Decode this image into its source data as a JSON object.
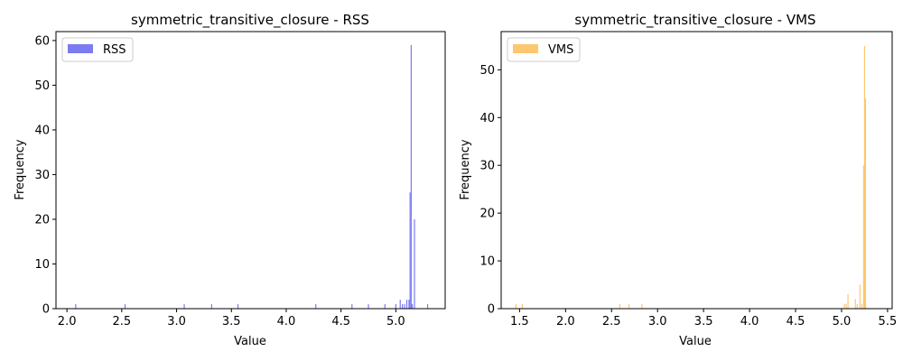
{
  "chart_data": [
    {
      "type": "bar",
      "title": "symmetric_transitive_closure - RSS",
      "xlabel": "Value",
      "ylabel": "Frequency",
      "xlim": [
        1.9,
        5.45
      ],
      "ylim": [
        0,
        62
      ],
      "xticks": [
        "2.0",
        "2.5",
        "3.0",
        "3.5",
        "4.0",
        "4.5",
        "5.0"
      ],
      "yticks": [
        "0",
        "10",
        "20",
        "30",
        "40",
        "50",
        "60"
      ],
      "grid": false,
      "legend_position": "top-left",
      "color": "#7b7bf4",
      "series": [
        {
          "name": "RSS",
          "x": [
            2.08,
            2.53,
            3.07,
            3.32,
            3.56,
            4.27,
            4.6,
            4.75,
            4.9,
            5.0,
            5.04,
            5.06,
            5.08,
            5.1,
            5.12,
            5.13,
            5.14,
            5.15,
            5.17,
            5.29
          ],
          "values": [
            1,
            1,
            1,
            1,
            1,
            1,
            1,
            1,
            1,
            1,
            2,
            1,
            1,
            2,
            2,
            26,
            59,
            1,
            20,
            1
          ]
        }
      ]
    },
    {
      "type": "bar",
      "title": "symmetric_transitive_closure - VMS",
      "xlabel": "Value",
      "ylabel": "Frequency",
      "xlim": [
        1.3,
        5.55
      ],
      "ylim": [
        0,
        58
      ],
      "xticks": [
        "1.5",
        "2.0",
        "2.5",
        "3.0",
        "3.5",
        "4.0",
        "4.5",
        "5.0",
        "5.5"
      ],
      "yticks": [
        "0",
        "10",
        "20",
        "30",
        "40",
        "50"
      ],
      "grid": false,
      "legend_position": "top-left",
      "color": "#fdc76f",
      "series": [
        {
          "name": "VMS",
          "x": [
            1.46,
            1.53,
            2.59,
            2.69,
            2.83,
            5.03,
            5.05,
            5.07,
            5.15,
            5.17,
            5.2,
            5.22,
            5.24,
            5.25,
            5.26
          ],
          "values": [
            1,
            1,
            1,
            1,
            1,
            1,
            1,
            3,
            2,
            1,
            5,
            1,
            30,
            55,
            44
          ]
        }
      ]
    }
  ]
}
